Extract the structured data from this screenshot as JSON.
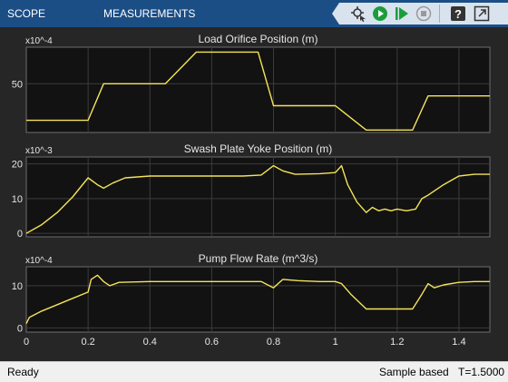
{
  "header": {
    "tabs": [
      {
        "label": "SCOPE"
      },
      {
        "label": "MEASUREMENTS"
      }
    ],
    "toolbar": {
      "icons": [
        "signal-selector-icon",
        "run-icon",
        "step-forward-icon",
        "stop-icon",
        "help-icon",
        "undock-icon"
      ]
    }
  },
  "status": {
    "left": "Ready",
    "mode": "Sample based",
    "time": "T=1.5000"
  },
  "colors": {
    "trace": "#f5e35a",
    "axes_bg": "#121212",
    "figure_bg": "#262626",
    "grid": "#3c3c3c",
    "text": "#e6e6e6",
    "header": "#1c4e86"
  },
  "chart_data": [
    {
      "type": "line",
      "title": "Load Orifice Position (m)",
      "exponent": "x10^-4",
      "xlim": [
        0,
        1.5
      ],
      "ylim": [
        10,
        80
      ],
      "yticks": [
        50
      ],
      "ytick_labels": [
        "50"
      ],
      "grid": true,
      "x": [
        0,
        0.2,
        0.25,
        0.45,
        0.55,
        0.75,
        0.8,
        1.0,
        1.1,
        1.25,
        1.3,
        1.5
      ],
      "y": [
        20,
        20,
        50,
        50,
        76,
        76,
        32,
        32,
        12,
        12,
        40,
        40
      ]
    },
    {
      "type": "line",
      "title": "Swash Plate Yoke Position (m)",
      "exponent": "x10^-3",
      "xlim": [
        0,
        1.5
      ],
      "ylim": [
        -1,
        22
      ],
      "yticks": [
        0,
        10,
        20
      ],
      "ytick_labels": [
        "0",
        "10",
        "20"
      ],
      "grid": true,
      "x": [
        0,
        0.05,
        0.1,
        0.15,
        0.2,
        0.23,
        0.25,
        0.28,
        0.32,
        0.4,
        0.5,
        0.6,
        0.7,
        0.76,
        0.8,
        0.83,
        0.87,
        0.95,
        1.0,
        1.02,
        1.04,
        1.07,
        1.1,
        1.12,
        1.14,
        1.16,
        1.18,
        1.2,
        1.23,
        1.26,
        1.28,
        1.3,
        1.35,
        1.4,
        1.45,
        1.5
      ],
      "y": [
        0,
        2.5,
        6,
        10.5,
        16,
        14,
        13,
        14.5,
        16,
        16.5,
        16.5,
        16.5,
        16.5,
        16.8,
        19.5,
        18,
        17,
        17.2,
        17.5,
        19.5,
        14,
        9,
        6,
        7.5,
        6.5,
        7,
        6.5,
        7,
        6.5,
        7,
        10,
        11,
        14,
        16.5,
        17,
        17
      ]
    },
    {
      "type": "line",
      "title": "Pump Flow Rate (m^3/s)",
      "exponent": "x10^-4",
      "xlim": [
        0,
        1.5
      ],
      "ylim": [
        -1,
        14.5
      ],
      "yticks": [
        0,
        10
      ],
      "ytick_labels": [
        "0",
        "10"
      ],
      "xticks": [
        0,
        0.2,
        0.4,
        0.6,
        0.8,
        1,
        1.2,
        1.4
      ],
      "xtick_labels": [
        "0",
        "0.2",
        "0.4",
        "0.6",
        "0.8",
        "1",
        "1.2",
        "1.4"
      ],
      "grid": true,
      "x": [
        0,
        0.01,
        0.05,
        0.1,
        0.15,
        0.2,
        0.21,
        0.23,
        0.25,
        0.27,
        0.3,
        0.4,
        0.5,
        0.6,
        0.7,
        0.76,
        0.8,
        0.83,
        0.88,
        0.95,
        1.0,
        1.02,
        1.05,
        1.1,
        1.15,
        1.2,
        1.25,
        1.28,
        1.3,
        1.32,
        1.35,
        1.4,
        1.45,
        1.5
      ],
      "y": [
        1,
        2.5,
        4,
        5.5,
        7,
        8.5,
        11.5,
        12.5,
        11,
        10,
        10.8,
        11,
        11,
        11,
        11,
        11,
        9.5,
        11.5,
        11.2,
        11,
        11,
        10.5,
        8,
        4.5,
        4.5,
        4.5,
        4.5,
        8,
        10.5,
        9.5,
        10.2,
        10.8,
        11,
        11
      ]
    }
  ]
}
